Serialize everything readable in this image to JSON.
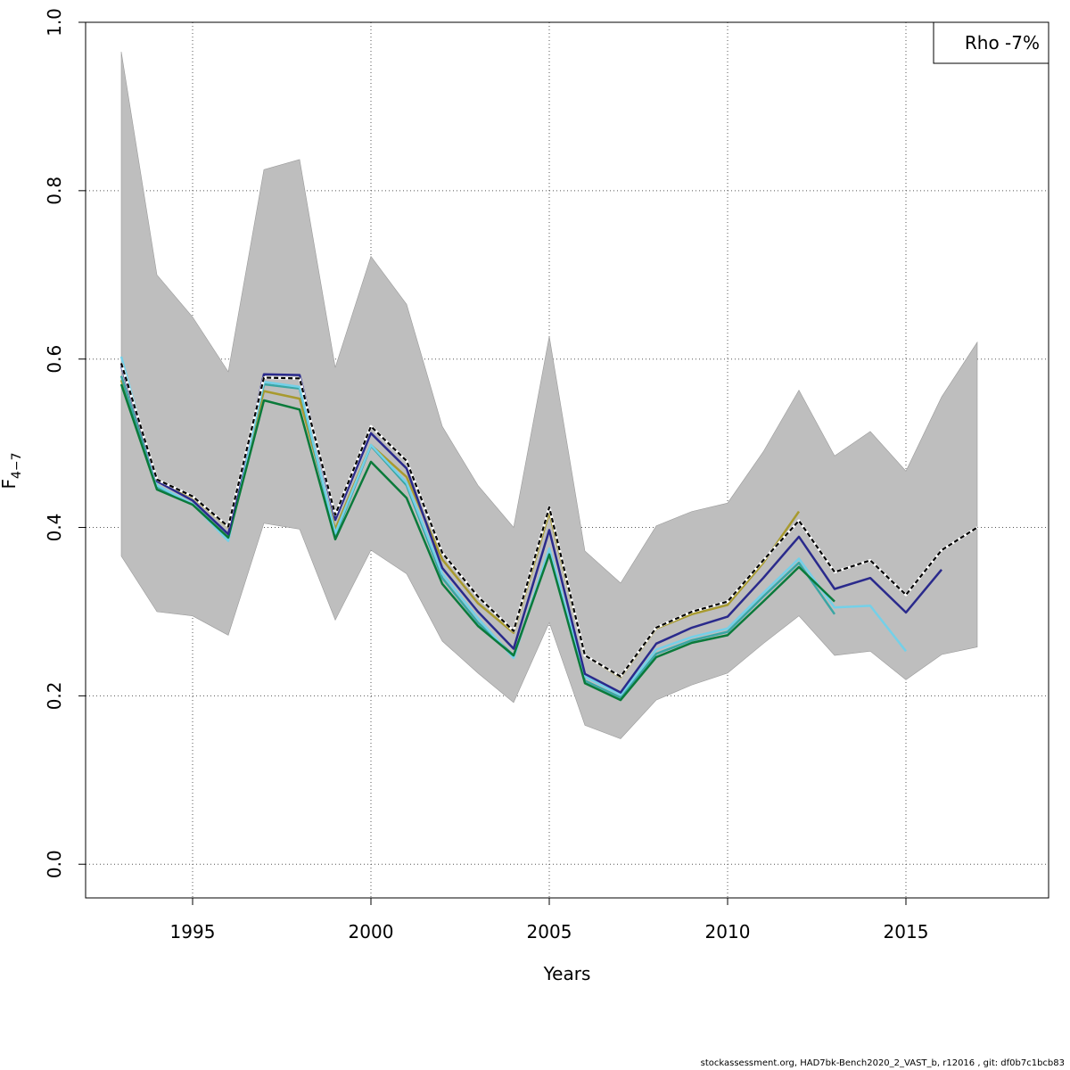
{
  "chart_data": {
    "type": "line",
    "title": "",
    "xlabel": "Years",
    "ylabel": "F",
    "ylabel_subscript": "4−7",
    "xlim": [
      1992,
      2019
    ],
    "ylim": [
      -0.04,
      1.0
    ],
    "xticks": [
      1995,
      2000,
      2005,
      2010,
      2015
    ],
    "yticks": [
      0.0,
      0.2,
      0.4,
      0.6,
      0.8,
      1.0
    ],
    "ytick_labels": [
      "0.0",
      "0.2",
      "0.4",
      "0.6",
      "0.8",
      "1.0"
    ],
    "grid": true,
    "legend": {
      "position": "top-right",
      "text": "Rho -7%"
    },
    "band": {
      "color": "#bebebe",
      "x": [
        1993,
        1994,
        1995,
        1996,
        1997,
        1998,
        1999,
        2000,
        2001,
        2002,
        2003,
        2004,
        2005,
        2006,
        2007,
        2008,
        2009,
        2010,
        2011,
        2012,
        2013,
        2014,
        2015,
        2016,
        2017
      ],
      "lower": [
        0.366,
        0.3,
        0.295,
        0.272,
        0.405,
        0.398,
        0.29,
        0.373,
        0.345,
        0.265,
        0.227,
        0.192,
        0.287,
        0.165,
        0.149,
        0.195,
        0.213,
        0.227,
        0.262,
        0.295,
        0.248,
        0.253,
        0.219,
        0.249,
        0.258
      ],
      "upper": [
        0.965,
        0.7,
        0.65,
        0.585,
        0.825,
        0.837,
        0.59,
        0.722,
        0.665,
        0.52,
        0.45,
        0.4,
        0.627,
        0.372,
        0.334,
        0.402,
        0.419,
        0.429,
        0.49,
        0.563,
        0.485,
        0.514,
        0.467,
        0.555,
        0.62
      ]
    },
    "series": [
      {
        "color": "#a89a2e",
        "dashed": false,
        "x": [
          1993,
          1994,
          1995,
          1996,
          1997,
          1998,
          1999,
          2000,
          2001,
          2002,
          2003,
          2004,
          2005,
          2006,
          2007,
          2008,
          2009,
          2010,
          2011,
          2012
        ],
        "values": [
          0.575,
          0.455,
          0.436,
          0.4,
          0.562,
          0.553,
          0.398,
          0.498,
          0.46,
          0.362,
          0.31,
          0.275,
          0.418,
          0.248,
          0.222,
          0.28,
          0.297,
          0.308,
          0.358,
          0.419
        ]
      },
      {
        "color": "#3aa6a4",
        "dashed": false,
        "x": [
          1993,
          1994,
          1995,
          1996,
          1997,
          1998,
          1999,
          2000,
          2001,
          2002,
          2003,
          2004,
          2005,
          2006,
          2007,
          2008,
          2009,
          2010,
          2011,
          2012,
          2013
        ],
        "values": [
          0.58,
          0.448,
          0.428,
          0.388,
          0.57,
          0.565,
          0.39,
          0.497,
          0.45,
          0.34,
          0.287,
          0.248,
          0.37,
          0.218,
          0.198,
          0.25,
          0.266,
          0.276,
          0.318,
          0.358,
          0.297
        ]
      },
      {
        "color": "#74d0e8",
        "dashed": false,
        "x": [
          1993,
          1994,
          1995,
          1996,
          1997,
          1998,
          1999,
          2000,
          2001,
          2002,
          2003,
          2004,
          2005,
          2006,
          2007,
          2008,
          2009,
          2010,
          2011,
          2012,
          2013,
          2014,
          2015
        ],
        "values": [
          0.603,
          0.45,
          0.428,
          0.384,
          0.573,
          0.567,
          0.393,
          0.498,
          0.453,
          0.345,
          0.292,
          0.245,
          0.375,
          0.223,
          0.201,
          0.255,
          0.27,
          0.28,
          0.322,
          0.363,
          0.305,
          0.307,
          0.253
        ]
      },
      {
        "color": "#0a7a3a",
        "dashed": false,
        "x": [
          1993,
          1994,
          1995,
          1996,
          1997,
          1998,
          1999,
          2000,
          2001,
          2002,
          2003,
          2004,
          2005,
          2006,
          2007,
          2008,
          2009,
          2010,
          2011,
          2012,
          2013
        ],
        "values": [
          0.57,
          0.445,
          0.427,
          0.388,
          0.551,
          0.54,
          0.386,
          0.478,
          0.435,
          0.333,
          0.283,
          0.248,
          0.368,
          0.215,
          0.195,
          0.246,
          0.263,
          0.272,
          0.312,
          0.353,
          0.312
        ]
      },
      {
        "color": "#2a2a8c",
        "dashed": false,
        "x": [
          1993,
          1994,
          1995,
          1996,
          1997,
          1998,
          1999,
          2000,
          2001,
          2002,
          2003,
          2004,
          2005,
          2006,
          2007,
          2008,
          2009,
          2010,
          2011,
          2012,
          2013,
          2014,
          2015,
          2016
        ],
        "values": [
          0.592,
          0.455,
          0.432,
          0.392,
          0.582,
          0.581,
          0.409,
          0.512,
          0.47,
          0.352,
          0.3,
          0.256,
          0.397,
          0.226,
          0.204,
          0.262,
          0.281,
          0.294,
          0.34,
          0.389,
          0.327,
          0.34,
          0.299,
          0.35
        ]
      },
      {
        "color": "#000000",
        "dashed": true,
        "x": [
          1993,
          1994,
          1995,
          1996,
          1997,
          1998,
          1999,
          2000,
          2001,
          2002,
          2003,
          2004,
          2005,
          2006,
          2007,
          2008,
          2009,
          2010,
          2011,
          2012,
          2013,
          2014,
          2015,
          2016,
          2017
        ],
        "values": [
          0.595,
          0.457,
          0.437,
          0.401,
          0.578,
          0.577,
          0.415,
          0.52,
          0.479,
          0.37,
          0.318,
          0.277,
          0.424,
          0.248,
          0.223,
          0.281,
          0.3,
          0.312,
          0.361,
          0.408,
          0.347,
          0.361,
          0.32,
          0.373,
          0.4
        ]
      }
    ]
  },
  "footer": "stockassessment.org, HAD7bk-Bench2020_2_VAST_b, r12016 , git: df0b7c1bcb83"
}
